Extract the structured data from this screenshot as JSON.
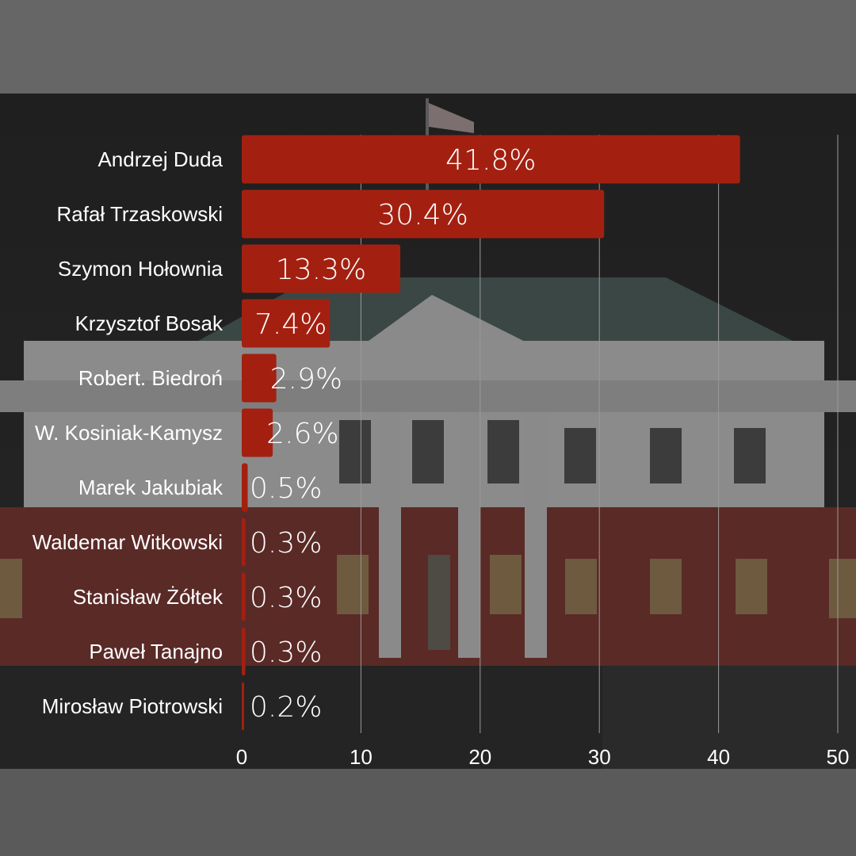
{
  "chart_data": {
    "type": "bar",
    "orientation": "horizontal",
    "categories": [
      "Andrzej Duda",
      "Rafał Trzaskowski",
      "Szymon Hołownia",
      "Krzysztof Bosak",
      "Robert. Biedroń",
      "W. Kosiniak-Kamysz",
      "Marek Jakubiak",
      "Waldemar Witkowski",
      "Stanisław Żółtek",
      "Paweł Tanajno",
      "Mirosław Piotrowski"
    ],
    "values": [
      41.8,
      30.4,
      13.3,
      7.4,
      2.9,
      2.6,
      0.5,
      0.3,
      0.3,
      0.3,
      0.2
    ],
    "data_labels": [
      "41.8%",
      "30.4%",
      "13.3%",
      "7.4%",
      "2.9%",
      "2.6%",
      "0.5%",
      "0.3%",
      "0.3%",
      "0.3%",
      "0.2%"
    ],
    "title": "",
    "xlabel": "",
    "ylabel": "",
    "xlim": [
      0,
      50
    ],
    "x_ticks": [
      "0",
      "10",
      "20",
      "30",
      "40",
      "50"
    ],
    "grid": "vertical",
    "bar_color": "#a32011",
    "label_color": "#ffffff",
    "gridline_color": "#9a9a9a",
    "background": "dark photo of presidential palace lit in white and red"
  }
}
